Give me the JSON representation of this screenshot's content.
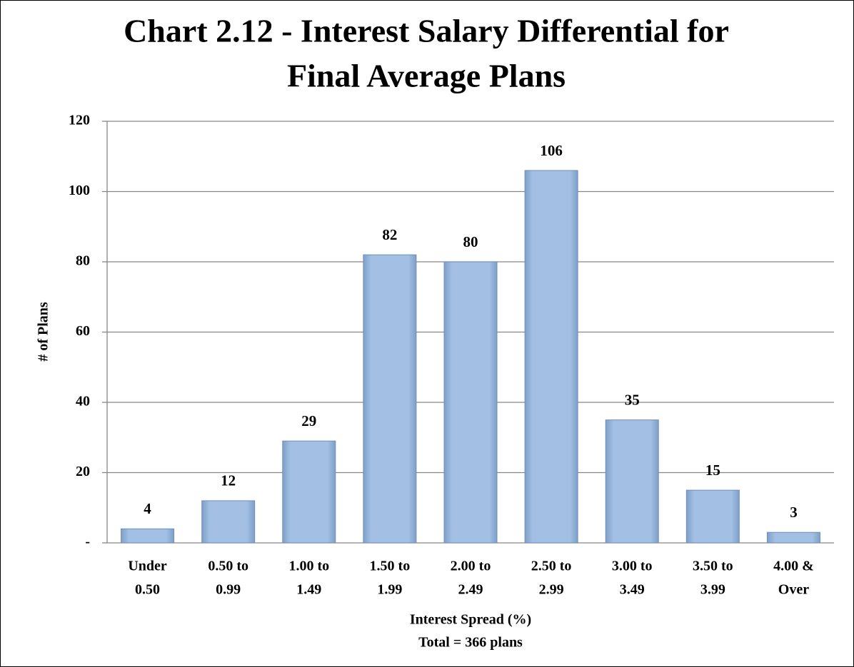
{
  "chart_data": {
    "type": "bar",
    "title": [
      "Chart 2.12 - Interest Salary Differential for",
      "Final Average Plans"
    ],
    "categories": [
      [
        "Under",
        "0.50"
      ],
      [
        "0.50 to",
        "0.99"
      ],
      [
        "1.00 to",
        "1.49"
      ],
      [
        "1.50 to",
        "1.99"
      ],
      [
        "2.00 to",
        "2.49"
      ],
      [
        "2.50 to",
        "2.99"
      ],
      [
        "3.00 to",
        "3.49"
      ],
      [
        "3.50 to",
        "3.99"
      ],
      [
        "4.00 &",
        "Over"
      ]
    ],
    "values": [
      4,
      12,
      29,
      82,
      80,
      106,
      35,
      15,
      3
    ],
    "color": "#9dbbe1",
    "ylim": [
      0,
      120
    ],
    "yticks": [
      {
        "value": 0,
        "label": "-"
      },
      20,
      40,
      60,
      80,
      100,
      120
    ],
    "ylabel": "# of Plans",
    "xlabel": [
      "Interest Spread (%)",
      "Total = 366 plans"
    ],
    "grid": true
  }
}
